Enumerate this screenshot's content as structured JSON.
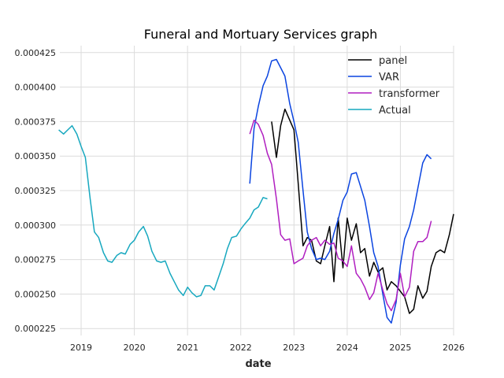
{
  "chart_data": {
    "type": "line",
    "title": "Funeral and Mortuary Services graph",
    "xlabel": "date",
    "ylabel": "",
    "xlim": [
      2018.6,
      2026.0
    ],
    "ylim": [
      0.00022,
      0.00043
    ],
    "x_ticks": [
      2019,
      2020,
      2021,
      2022,
      2023,
      2024,
      2025,
      2026
    ],
    "y_ticks": [
      "0.000225",
      "0.000250",
      "0.000275",
      "0.000300",
      "0.000325",
      "0.000350",
      "0.000375",
      "0.000400",
      "0.000425"
    ],
    "grid": true,
    "legend_position": "top-right",
    "series": [
      {
        "name": "panel",
        "color": "#000000",
        "x": [
          2022.58,
          2022.67,
          2022.75,
          2022.83,
          2022.92,
          2023.0,
          2023.08,
          2023.17,
          2023.25,
          2023.33,
          2023.42,
          2023.5,
          2023.58,
          2023.67,
          2023.75,
          2023.83,
          2023.92,
          2024.0,
          2024.08,
          2024.17,
          2024.25,
          2024.33,
          2024.42,
          2024.5,
          2024.58,
          2024.67,
          2024.75,
          2024.83,
          2024.92,
          2025.0,
          2025.08,
          2025.17,
          2025.25,
          2025.33,
          2025.42,
          2025.5,
          2025.58,
          2025.67,
          2025.75,
          2025.83,
          2025.92,
          2026.0
        ],
        "values": [
          0.000375,
          0.000349,
          0.000372,
          0.000384,
          0.000376,
          0.000369,
          0.00033,
          0.000285,
          0.000291,
          0.000289,
          0.000274,
          0.000272,
          0.000285,
          0.000299,
          0.000259,
          0.000305,
          0.000269,
          0.000305,
          0.000289,
          0.000301,
          0.00028,
          0.000283,
          0.000263,
          0.000273,
          0.000266,
          0.000269,
          0.000253,
          0.000259,
          0.000256,
          0.000252,
          0.000248,
          0.000236,
          0.000239,
          0.000256,
          0.000247,
          0.000252,
          0.00027,
          0.00028,
          0.000282,
          0.00028,
          0.000293,
          0.000308
        ]
      },
      {
        "name": "VAR",
        "color": "#0a44e0",
        "x": [
          2022.17,
          2022.25,
          2022.33,
          2022.42,
          2022.5,
          2022.58,
          2022.67,
          2022.75,
          2022.83,
          2022.92,
          2023.0,
          2023.08,
          2023.17,
          2023.25,
          2023.33,
          2023.42,
          2023.5,
          2023.58,
          2023.67,
          2023.75,
          2023.83,
          2023.92,
          2024.0,
          2024.08,
          2024.17,
          2024.25,
          2024.33,
          2024.42,
          2024.5,
          2024.58,
          2024.67,
          2024.75,
          2024.83,
          2024.92,
          2025.0,
          2025.08,
          2025.17,
          2025.25,
          2025.33,
          2025.42,
          2025.5,
          2025.58
        ],
        "values": [
          0.00033,
          0.00037,
          0.000386,
          0.000401,
          0.000408,
          0.000419,
          0.00042,
          0.000414,
          0.000408,
          0.000388,
          0.000375,
          0.00036,
          0.000325,
          0.000295,
          0.000283,
          0.000275,
          0.000276,
          0.000275,
          0.000281,
          0.000294,
          0.000304,
          0.000318,
          0.000324,
          0.000337,
          0.000338,
          0.000328,
          0.000318,
          0.000299,
          0.00028,
          0.00027,
          0.00025,
          0.000233,
          0.000229,
          0.000244,
          0.000271,
          0.00029,
          0.000299,
          0.000311,
          0.000327,
          0.000345,
          0.000351,
          0.000348
        ]
      },
      {
        "name": "transformer",
        "color": "#b01fc0",
        "x": [
          2022.17,
          2022.25,
          2022.33,
          2022.42,
          2022.5,
          2022.58,
          2022.67,
          2022.75,
          2022.83,
          2022.92,
          2023.0,
          2023.08,
          2023.17,
          2023.25,
          2023.33,
          2023.42,
          2023.5,
          2023.58,
          2023.67,
          2023.75,
          2023.83,
          2023.92,
          2024.0,
          2024.08,
          2024.17,
          2024.25,
          2024.33,
          2024.42,
          2024.5,
          2024.58,
          2024.67,
          2024.75,
          2024.83,
          2024.92,
          2025.0,
          2025.08,
          2025.17,
          2025.25,
          2025.33,
          2025.42,
          2025.5,
          2025.58
        ],
        "values": [
          0.000366,
          0.000376,
          0.000373,
          0.000365,
          0.000352,
          0.000344,
          0.000319,
          0.000293,
          0.000289,
          0.00029,
          0.000272,
          0.000274,
          0.000276,
          0.000285,
          0.000289,
          0.000291,
          0.000285,
          0.000289,
          0.000286,
          0.000287,
          0.000276,
          0.000274,
          0.00027,
          0.000285,
          0.000265,
          0.000261,
          0.000255,
          0.000246,
          0.000251,
          0.000265,
          0.000253,
          0.000243,
          0.000238,
          0.000246,
          0.000265,
          0.000248,
          0.000255,
          0.000281,
          0.000288,
          0.000288,
          0.000291,
          0.000303
        ]
      },
      {
        "name": "Actual",
        "color": "#17a8bf",
        "x": [
          2018.58,
          2018.67,
          2018.75,
          2018.83,
          2018.92,
          2019.0,
          2019.08,
          2019.17,
          2019.25,
          2019.33,
          2019.42,
          2019.5,
          2019.58,
          2019.67,
          2019.75,
          2019.83,
          2019.92,
          2020.0,
          2020.08,
          2020.17,
          2020.25,
          2020.33,
          2020.42,
          2020.5,
          2020.58,
          2020.67,
          2020.75,
          2020.83,
          2020.92,
          2021.0,
          2021.08,
          2021.17,
          2021.25,
          2021.33,
          2021.42,
          2021.5,
          2021.58,
          2021.67,
          2021.75,
          2021.83,
          2021.92,
          2022.0,
          2022.08,
          2022.17,
          2022.25,
          2022.33,
          2022.42,
          2022.5
        ],
        "values": [
          0.000369,
          0.000366,
          0.000369,
          0.000372,
          0.000366,
          0.000357,
          0.000349,
          0.000319,
          0.000295,
          0.000291,
          0.00028,
          0.000274,
          0.000273,
          0.000278,
          0.00028,
          0.000279,
          0.000286,
          0.000289,
          0.000295,
          0.000299,
          0.000292,
          0.000281,
          0.000274,
          0.000273,
          0.000274,
          0.000265,
          0.000259,
          0.000253,
          0.000249,
          0.000255,
          0.000251,
          0.000248,
          0.000249,
          0.000256,
          0.000256,
          0.000253,
          0.000262,
          0.000272,
          0.000283,
          0.000291,
          0.000292,
          0.000297,
          0.000301,
          0.000305,
          0.000311,
          0.000313,
          0.00032,
          0.000319
        ]
      }
    ]
  }
}
